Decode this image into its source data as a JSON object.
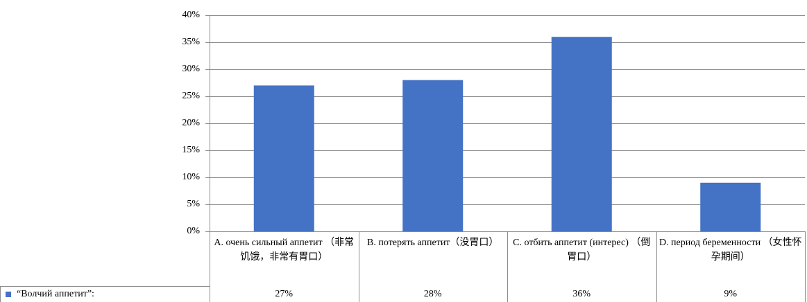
{
  "chart_data": {
    "type": "bar",
    "categories": [
      "A. очень сильный аппетит （非常饥饿，非常有胃口）",
      "B. потерять аппетит（没胃口）",
      "C. отбить аппетит (интерес) （倒胃口）",
      "D. период беременности （女性怀孕期间）"
    ],
    "series": [
      {
        "name": "“Волчий аппетит”:",
        "values": [
          27,
          28,
          36,
          9
        ],
        "labels": [
          "27%",
          "28%",
          "36%",
          "9%"
        ],
        "color": "#4472C4"
      }
    ],
    "yticks": [
      "0%",
      "5%",
      "10%",
      "15%",
      "20%",
      "25%",
      "30%",
      "35%",
      "40%"
    ],
    "ylim": [
      0,
      40
    ],
    "grid": true,
    "legend": "left of data table",
    "xlabel": "",
    "ylabel": "",
    "title": ""
  }
}
